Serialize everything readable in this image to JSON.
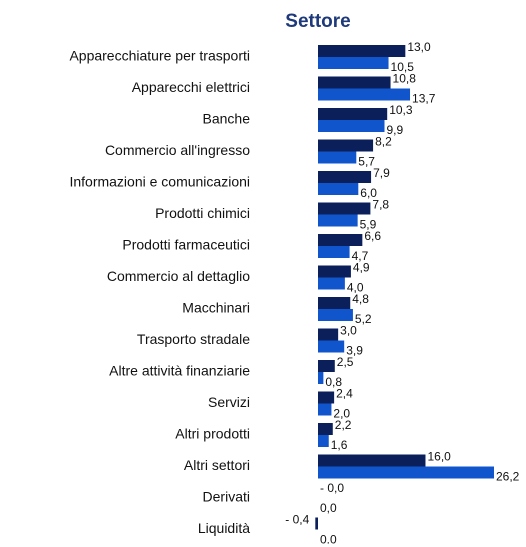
{
  "chart_data": {
    "type": "bar",
    "orientation": "horizontal",
    "title": "Settore",
    "categories": [
      "Apparecchiature per trasporti",
      "Apparecchi elettrici",
      "Banche",
      "Commercio all'ingresso",
      "Informazioni e comunicazioni",
      "Prodotti chimici",
      "Prodotti farmaceutici",
      "Commercio al dettaglio",
      "Macchinari",
      "Trasporto stradale",
      "Altre attività finanziarie",
      "Servizi",
      "Altri prodotti",
      "Altri settori",
      "Derivati",
      "Liquidità"
    ],
    "series": [
      {
        "color": "#0b1f5b",
        "values": [
          13.0,
          10.8,
          10.3,
          8.2,
          7.9,
          7.8,
          6.6,
          4.9,
          4.8,
          3.0,
          2.5,
          2.4,
          2.2,
          16.0,
          0,
          -0.4
        ],
        "value_labels": [
          "13,0",
          "10,8",
          "10,3",
          "8,2",
          "7,9",
          "7,8",
          "6,6",
          "4,9",
          "4,8",
          "3,0",
          "2,5",
          "2,4",
          "2,2",
          "16,0",
          "- 0,0",
          "- 0,4"
        ]
      },
      {
        "color": "#1155cc",
        "values": [
          10.5,
          13.7,
          9.9,
          5.7,
          6.0,
          5.9,
          4.7,
          4.0,
          5.2,
          3.9,
          0.8,
          2.0,
          1.6,
          26.2,
          0,
          0
        ],
        "value_labels": [
          "10,5",
          "13,7",
          "9,9",
          "5,7",
          "6,0",
          "5,9",
          "4,7",
          "4,0",
          "5,2",
          "3,9",
          "0,8",
          "2,0",
          "1,6",
          "26,2",
          "0,0",
          "0.0"
        ]
      }
    ]
  }
}
